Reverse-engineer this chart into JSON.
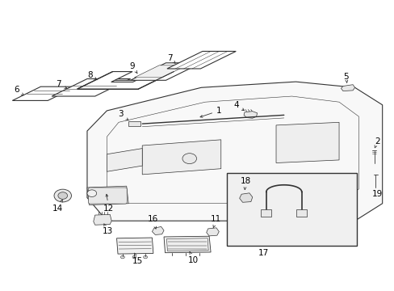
{
  "bg_color": "#ffffff",
  "line_color": "#333333",
  "fig_width": 4.89,
  "fig_height": 3.6,
  "dpi": 100
}
